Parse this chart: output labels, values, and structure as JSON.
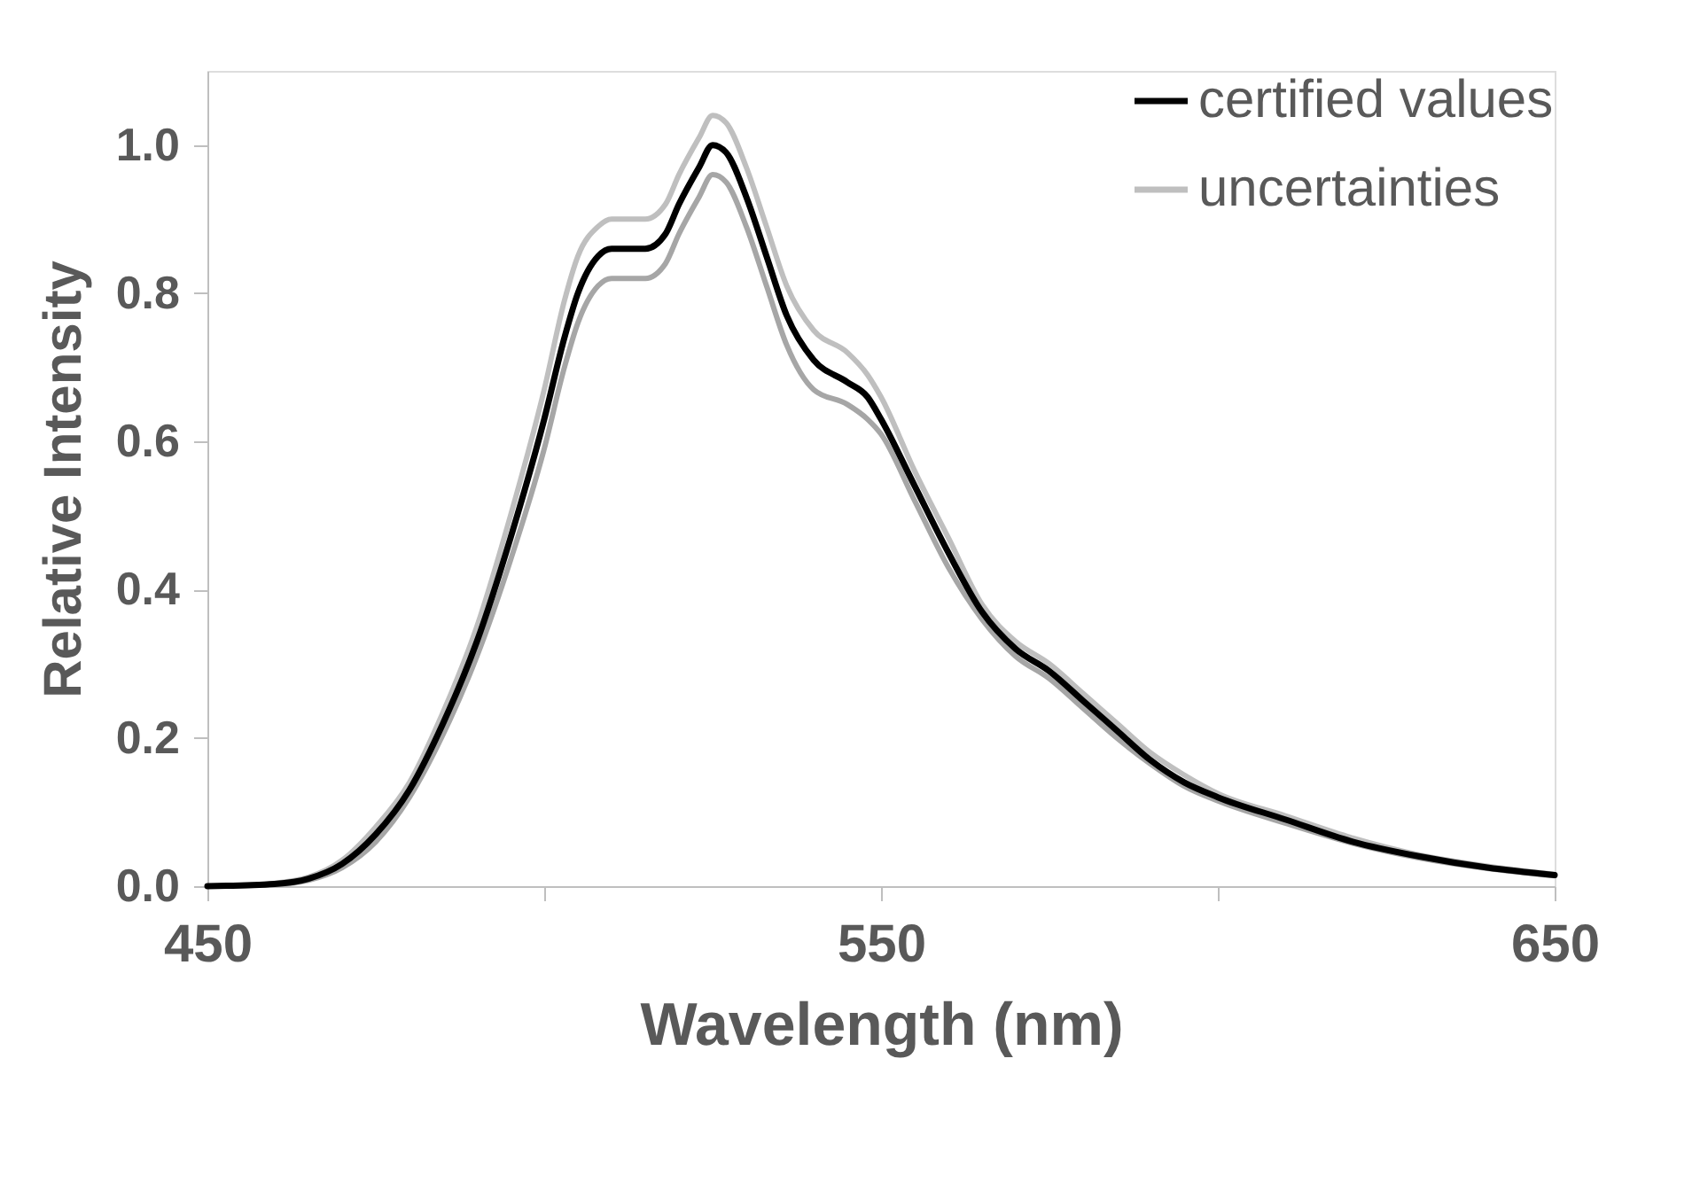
{
  "chart_data": {
    "type": "line",
    "xlabel": "Wavelength (nm)",
    "ylabel": "Relative Intensity",
    "x": [
      450,
      460,
      465,
      470,
      475,
      480,
      485,
      490,
      495,
      500,
      503,
      505,
      508,
      510,
      512,
      515,
      518,
      520,
      523,
      525,
      527,
      530,
      533,
      536,
      540,
      545,
      548,
      550,
      555,
      560,
      565,
      570,
      575,
      580,
      585,
      590,
      595,
      600,
      610,
      620,
      630,
      640,
      650
    ],
    "series": [
      {
        "name": "certified values",
        "color": "#000000",
        "values": [
          0,
          0.003,
          0.01,
          0.03,
          0.07,
          0.13,
          0.22,
          0.33,
          0.47,
          0.63,
          0.74,
          0.8,
          0.85,
          0.86,
          0.86,
          0.86,
          0.88,
          0.92,
          0.97,
          1.0,
          0.99,
          0.93,
          0.85,
          0.77,
          0.71,
          0.68,
          0.66,
          0.63,
          0.54,
          0.45,
          0.37,
          0.32,
          0.29,
          0.25,
          0.21,
          0.17,
          0.14,
          0.12,
          0.09,
          0.06,
          0.04,
          0.025,
          0.015
        ]
      },
      {
        "name": "uncertainties",
        "color": "#bfbfbf",
        "values": [
          0,
          0.004,
          0.012,
          0.035,
          0.08,
          0.14,
          0.235,
          0.35,
          0.5,
          0.67,
          0.79,
          0.85,
          0.89,
          0.9,
          0.9,
          0.9,
          0.92,
          0.96,
          1.01,
          1.04,
          1.03,
          0.97,
          0.89,
          0.81,
          0.75,
          0.72,
          0.69,
          0.66,
          0.56,
          0.47,
          0.38,
          0.33,
          0.3,
          0.26,
          0.22,
          0.18,
          0.15,
          0.125,
          0.095,
          0.065,
          0.042,
          0.027,
          0.016
        ]
      },
      {
        "color": "#a6a6a6",
        "values": [
          0,
          0.002,
          0.008,
          0.025,
          0.06,
          0.12,
          0.205,
          0.31,
          0.44,
          0.59,
          0.7,
          0.76,
          0.81,
          0.82,
          0.82,
          0.82,
          0.84,
          0.88,
          0.93,
          0.96,
          0.95,
          0.89,
          0.81,
          0.73,
          0.67,
          0.65,
          0.63,
          0.61,
          0.52,
          0.43,
          0.36,
          0.31,
          0.28,
          0.24,
          0.2,
          0.165,
          0.135,
          0.115,
          0.085,
          0.058,
          0.038,
          0.024,
          0.014
        ]
      }
    ],
    "xlim": [
      450,
      650
    ],
    "xticks": [
      450,
      {
        "value": 500,
        "label": null
      },
      550,
      {
        "value": 600,
        "label": null
      },
      650
    ],
    "ylim": [
      0,
      1.1
    ],
    "yticks": [
      {
        "value": 0,
        "label": "0.0"
      },
      {
        "value": 0.2,
        "label": "0.2"
      },
      {
        "value": 0.4,
        "label": "0.4"
      },
      {
        "value": 0.6,
        "label": "0.6"
      },
      {
        "value": 0.8,
        "label": "0.8"
      },
      {
        "value": 1.0,
        "label": "1.0"
      }
    ],
    "grid": false,
    "legend": "top right",
    "marker": "none",
    "line_style": "solid"
  }
}
